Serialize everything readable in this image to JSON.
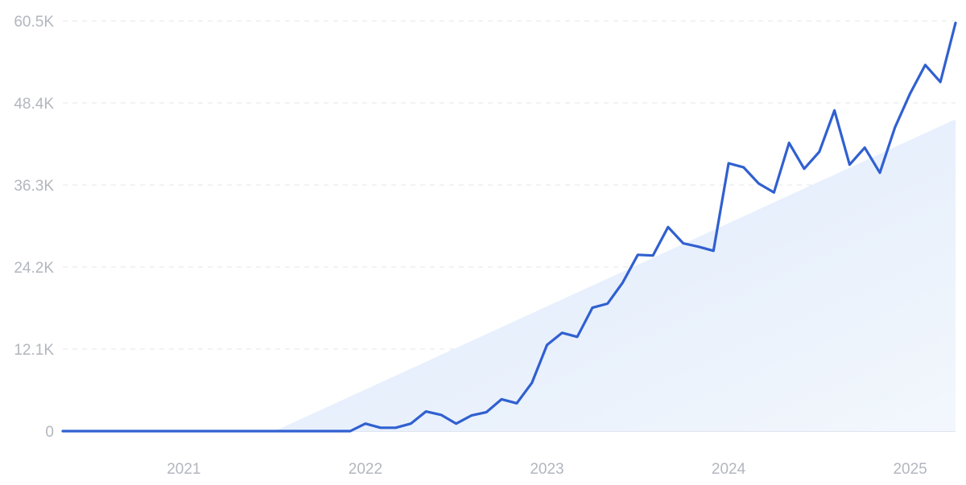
{
  "chart_data": {
    "type": "line",
    "title": "",
    "xlabel": "",
    "ylabel": "",
    "x_ticks": [
      "2021",
      "2022",
      "2023",
      "2024",
      "2025"
    ],
    "y_ticks": [
      "0",
      "12.1K",
      "24.2K",
      "36.3K",
      "48.4K",
      "60.5K"
    ],
    "y_tick_values": [
      0,
      12100,
      24200,
      36300,
      48400,
      60500
    ],
    "ylim": [
      0,
      60500
    ],
    "xlim": [
      "2020-05",
      "2025-04"
    ],
    "grid": true,
    "legend": "none",
    "line_color": "#3060d0",
    "trend_fill_color": "#e4eefb",
    "trend": {
      "start": {
        "x": "2021-07",
        "y": 0
      },
      "end": {
        "x": "2025-04",
        "y": 46000
      }
    },
    "series": [
      {
        "x": [
          "2020-05",
          "2020-06",
          "2020-07",
          "2020-08",
          "2020-09",
          "2020-10",
          "2020-11",
          "2020-12",
          "2021-01",
          "2021-02",
          "2021-03",
          "2021-04",
          "2021-05",
          "2021-06",
          "2021-07",
          "2021-08",
          "2021-09",
          "2021-10",
          "2021-11",
          "2021-12",
          "2022-01",
          "2022-02",
          "2022-03",
          "2022-04",
          "2022-05",
          "2022-06",
          "2022-07",
          "2022-08",
          "2022-09",
          "2022-10",
          "2022-11",
          "2022-12",
          "2023-01",
          "2023-02",
          "2023-03",
          "2023-04",
          "2023-05",
          "2023-06",
          "2023-07",
          "2023-08",
          "2023-09",
          "2023-10",
          "2023-11",
          "2023-12",
          "2024-01",
          "2024-02",
          "2024-03",
          "2024-04",
          "2024-05",
          "2024-06",
          "2024-07",
          "2024-08",
          "2024-09",
          "2024-10",
          "2024-11",
          "2024-12",
          "2025-01",
          "2025-02",
          "2025-03",
          "2025-04"
        ],
        "values": [
          0,
          0,
          0,
          0,
          0,
          0,
          0,
          0,
          0,
          0,
          0,
          0,
          0,
          0,
          0,
          0,
          0,
          0,
          0,
          0,
          1100,
          500,
          500,
          1100,
          2900,
          2400,
          1100,
          2300,
          2800,
          4700,
          4100,
          7100,
          12700,
          14500,
          13900,
          18200,
          18800,
          21900,
          26000,
          25900,
          30100,
          27700,
          27200,
          26600,
          39500,
          38900,
          36500,
          35200,
          42500,
          38700,
          41200,
          47300,
          39300,
          41800,
          38100,
          44800,
          49800,
          54000,
          51500,
          60200
        ]
      }
    ]
  }
}
